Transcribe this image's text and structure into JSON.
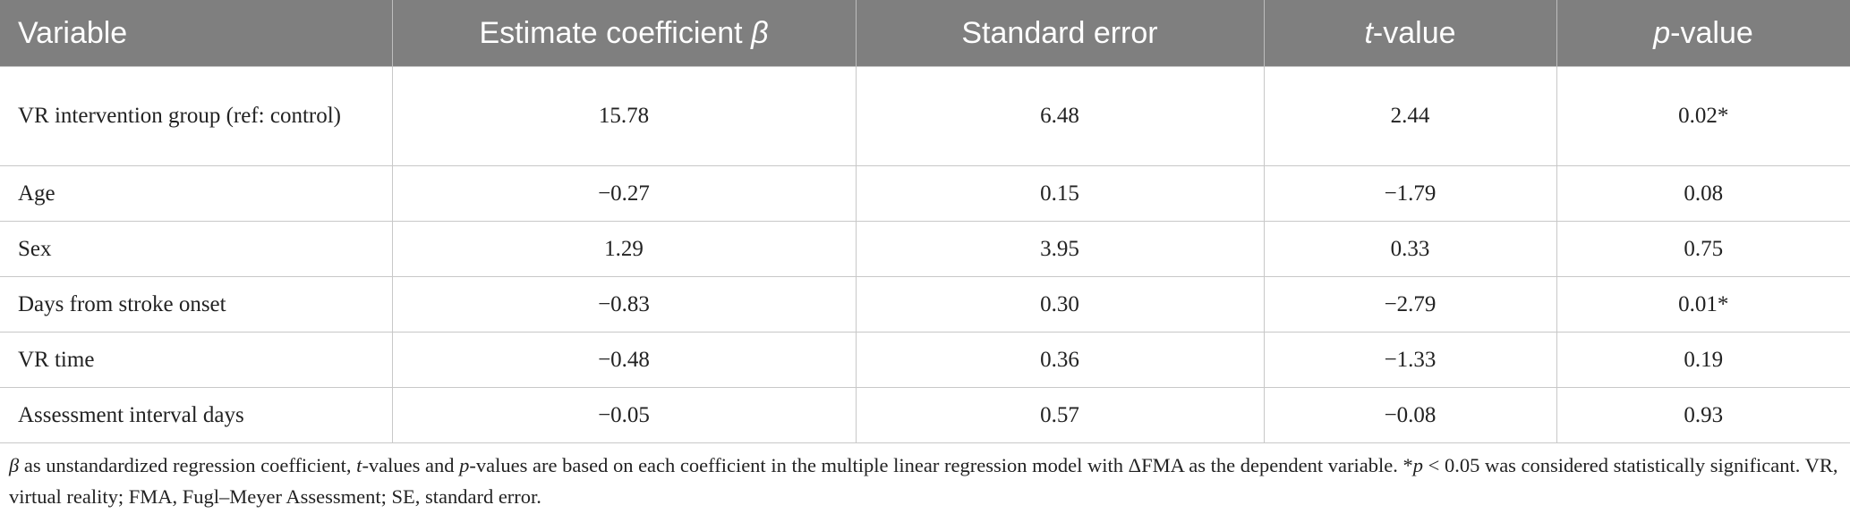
{
  "table": {
    "header": [
      [
        {
          "text": "Variable"
        }
      ],
      [
        {
          "text": "Estimate coefficient "
        },
        {
          "text": "β",
          "italic": true
        }
      ],
      [
        {
          "text": "Standard error"
        }
      ],
      [
        {
          "text": "t",
          "italic": true
        },
        {
          "text": "-value"
        }
      ],
      [
        {
          "text": "p",
          "italic": true
        },
        {
          "text": "-value"
        }
      ]
    ],
    "rows": [
      [
        "VR intervention group (ref: control)",
        "15.78",
        "6.48",
        "2.44",
        "0.02*"
      ],
      [
        "Age",
        "−0.27",
        "0.15",
        "−1.79",
        "0.08"
      ],
      [
        "Sex",
        "1.29",
        "3.95",
        "0.33",
        "0.75"
      ],
      [
        "Days from stroke onset",
        "−0.83",
        "0.30",
        "−2.79",
        "0.01*"
      ],
      [
        "VR time",
        "−0.48",
        "0.36",
        "−1.33",
        "0.19"
      ],
      [
        "Assessment interval days",
        "−0.05",
        "0.57",
        "−0.08",
        "0.93"
      ]
    ],
    "footnote": [
      {
        "text": "β",
        "italic": true
      },
      {
        "text": " as unstandardized regression coefficient, "
      },
      {
        "text": "t",
        "italic": true
      },
      {
        "text": "-values and "
      },
      {
        "text": "p",
        "italic": true
      },
      {
        "text": "-values are based on each coefficient in the multiple linear regression model with ΔFMA as the dependent variable. *"
      },
      {
        "text": "p",
        "italic": true
      },
      {
        "text": " < 0.05 was considered statistically significant. VR, virtual reality; FMA, Fugl–Meyer Assessment; SE, standard error."
      }
    ]
  }
}
